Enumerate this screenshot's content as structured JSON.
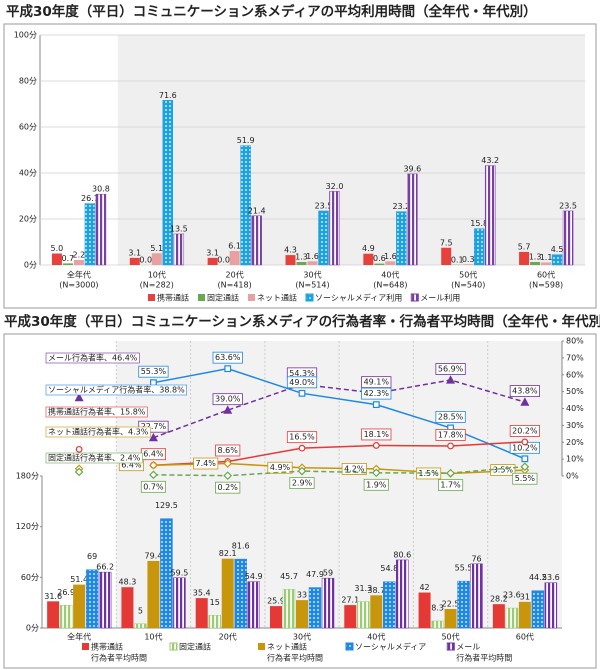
{
  "chart_data": [
    {
      "type": "bar",
      "title": "平成30年度（平日）コミュニケーション系メディアの平均利用時間（全年代・年代別）",
      "categories": [
        "全年代",
        "10代",
        "20代",
        "30代",
        "40代",
        "50代",
        "60代"
      ],
      "category_notes": [
        "(N=3000)",
        "(N=282)",
        "(N=418)",
        "(N=514)",
        "(N=648)",
        "(N=540)",
        "(N=598)"
      ],
      "ylim": [
        0,
        100
      ],
      "yticks": [
        {
          "value": 0,
          "label": "0分"
        },
        {
          "value": 20,
          "label": "20分"
        },
        {
          "value": 40,
          "label": "40分"
        },
        {
          "value": 60,
          "label": "60分"
        },
        {
          "value": 80,
          "label": "80分"
        },
        {
          "value": 100,
          "label": "100分"
        }
      ],
      "grid": true,
      "series": [
        {
          "name": "携帯通話",
          "color": "#e8413c",
          "pattern": "solid",
          "values": [
            5.0,
            3.1,
            3.1,
            4.3,
            4.9,
            7.5,
            5.7
          ],
          "value_labels": [
            "5.0",
            "3.1",
            "3.1",
            "4.3",
            "4.9",
            "7.5",
            "5.7"
          ]
        },
        {
          "name": "固定通話",
          "color": "#6aa84f",
          "pattern": "solid",
          "values": [
            0.7,
            0.0,
            0.0,
            1.3,
            0.6,
            0.1,
            1.3
          ],
          "value_labels": [
            "0.7",
            "0.0",
            "0.0",
            "1.3",
            "0.6",
            "0.1",
            "1.3"
          ]
        },
        {
          "name": "ネット通話",
          "color": "#e8a0a0",
          "pattern": "solid",
          "values": [
            2.2,
            5.1,
            6.1,
            1.6,
            1.6,
            0.3,
            1.1
          ],
          "value_labels": [
            "2.2",
            "5.1",
            "6.1",
            "1.6",
            "1.6",
            "0.3",
            "1.1"
          ]
        },
        {
          "name": "ソーシャルメディア利用",
          "color": "#1aa3e0",
          "pattern": "dots",
          "values": [
            26.7,
            71.6,
            51.9,
            23.5,
            23.2,
            15.8,
            4.5
          ],
          "value_labels": [
            "26.7",
            "71.6",
            "51.9",
            "23.5",
            "23.2",
            "15.8",
            "4.5"
          ]
        },
        {
          "name": "メール利用",
          "color": "#7b3fa0",
          "pattern": "stripes",
          "values": [
            30.8,
            13.5,
            21.4,
            32.0,
            39.6,
            43.2,
            23.5
          ],
          "value_labels": [
            "30.8",
            "13.5",
            "21.4",
            "32.0",
            "39.6",
            "43.2",
            "23.5"
          ]
        }
      ]
    },
    {
      "type": "combo",
      "title": "平成30年度（平日）コミュニケーション系メディアの行為者率・行為者平均時間（全年代・年代別）",
      "categories": [
        "全年代",
        "10代",
        "20代",
        "30代",
        "40代",
        "50代",
        "60代"
      ],
      "ylim": [
        0,
        180
      ],
      "yticks": [
        {
          "value": 0,
          "label": "0分"
        },
        {
          "value": 60,
          "label": "60分"
        },
        {
          "value": 120,
          "label": "120分"
        },
        {
          "value": 180,
          "label": "180分"
        }
      ],
      "y2lim": [
        0,
        80
      ],
      "y2ticks": [
        {
          "value": 0,
          "label": "0%"
        },
        {
          "value": 10,
          "label": "10%"
        },
        {
          "value": 20,
          "label": "20%"
        },
        {
          "value": 30,
          "label": "30%"
        },
        {
          "value": 40,
          "label": "40%"
        },
        {
          "value": 50,
          "label": "50%"
        },
        {
          "value": 60,
          "label": "60%"
        },
        {
          "value": 70,
          "label": "70%"
        },
        {
          "value": 80,
          "label": "80%"
        }
      ],
      "series": [
        {
          "kind": "bar",
          "name": "携帯通話",
          "legend_line2": "行為者平均時間",
          "color": "#e53935",
          "pattern": "solid",
          "values": [
            31.6,
            48.3,
            35.4,
            25.9,
            27.1,
            42.0,
            28.2
          ]
        },
        {
          "kind": "bar",
          "name": "固定通話",
          "color": "#9acd72",
          "pattern": "stripes",
          "values": [
            26.9,
            5.0,
            15.0,
            45.7,
            31.3,
            8.3,
            23.6
          ]
        },
        {
          "kind": "bar",
          "name": "ネット通話",
          "legend_line2": "行為者平均時間",
          "color": "#c8960c",
          "pattern": "solid",
          "values": [
            51.4,
            79.4,
            82.1,
            33.0,
            38.7,
            22.5,
            31.0
          ]
        },
        {
          "kind": "bar",
          "name": "ソーシャルメディア",
          "color": "#1e88e5",
          "pattern": "dots",
          "values": [
            69.0,
            129.5,
            81.6,
            47.9,
            54.8,
            55.5,
            44.2
          ]
        },
        {
          "kind": "bar",
          "name": "メール",
          "legend_line2": "行為者平均時間",
          "color": "#7030a0",
          "pattern": "stripes",
          "values": [
            66.2,
            59.5,
            54.9,
            59.0,
            80.6,
            76.0,
            53.6
          ]
        },
        {
          "kind": "line",
          "axis": "y2",
          "color": "#7030a0",
          "dashed": true,
          "marker": "triangle",
          "overall": 46.4,
          "overall_label": "メール行為者率、46.4%",
          "values": [
            null,
            22.7,
            39.0,
            54.3,
            49.1,
            56.9,
            43.8
          ],
          "value_labels": [
            null,
            "22.7%",
            "39.0%",
            "54.3%",
            "49.1%",
            "56.9%",
            "43.8%"
          ]
        },
        {
          "kind": "line",
          "axis": "y2",
          "color": "#1e88e5",
          "dashed": false,
          "marker": "square",
          "overall": 38.8,
          "overall_label": "ソーシャルメディア行為者率、38.8%",
          "values": [
            null,
            55.3,
            63.6,
            49.0,
            42.3,
            28.5,
            10.2
          ],
          "value_labels": [
            null,
            "55.3%",
            "63.6%",
            "49.0%",
            "42.3%",
            "28.5%",
            "10.2%"
          ]
        },
        {
          "kind": "line",
          "axis": "y2",
          "color": "#e53935",
          "dashed": false,
          "marker": "circle",
          "overall": 15.8,
          "overall_label": "携帯通話行為者率、15.8%",
          "values": [
            null,
            6.4,
            8.6,
            16.5,
            18.1,
            17.8,
            20.2
          ],
          "value_labels": [
            null,
            "6.4%",
            "8.6%",
            "16.5%",
            "18.1%",
            "17.8%",
            "20.2%"
          ]
        },
        {
          "kind": "line",
          "axis": "y2",
          "color": "#c8960c",
          "dashed": false,
          "marker": "diamond",
          "overall": 4.3,
          "overall_label": "ネット通話行為者率、4.3%",
          "values": [
            null,
            6.4,
            7.4,
            4.9,
            4.2,
            1.5,
            3.5
          ],
          "value_labels": [
            null,
            "6.4%",
            "7.4%",
            "4.9%",
            "4.2%",
            "1.5%",
            "3.5%"
          ]
        },
        {
          "kind": "line",
          "axis": "y2",
          "color": "#6aa84f",
          "dashed": true,
          "marker": "diamond",
          "overall": 2.4,
          "overall_label": "固定通話行為者率、2.4%",
          "values": [
            null,
            0.7,
            0.2,
            2.9,
            1.9,
            1.7,
            5.5
          ],
          "value_labels": [
            null,
            "0.7%",
            "0.2%",
            "2.9%",
            "1.9%",
            "1.7%",
            "5.5%"
          ]
        }
      ]
    }
  ]
}
